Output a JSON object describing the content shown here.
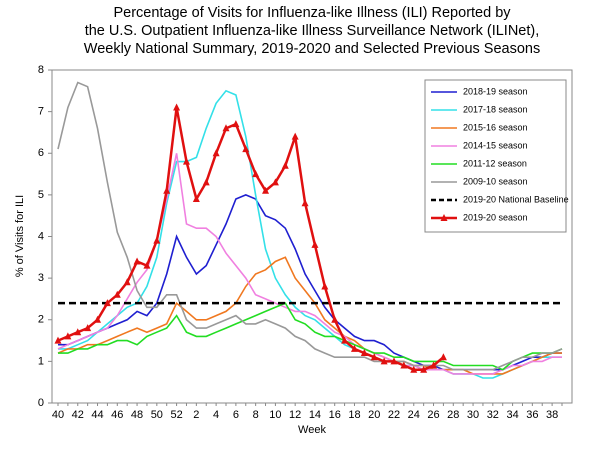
{
  "chart_data": {
    "type": "line",
    "title": [
      "Percentage of Visits for Influenza-like Illness (ILI) Reported by",
      "the U.S. Outpatient Influenza-like Illness Surveillance Network (ILINet),",
      "Weekly National Summary, 2019-2020 and Selected Previous Seasons"
    ],
    "x_label": "Week",
    "y_label": "% of Visits for ILI",
    "categories": [
      "40",
      null,
      "42",
      null,
      "44",
      null,
      "46",
      null,
      "48",
      null,
      "50",
      null,
      "52",
      null,
      "2",
      null,
      "4",
      null,
      "6",
      null,
      "8",
      null,
      "10",
      null,
      "12",
      null,
      "14",
      null,
      "16",
      null,
      "18",
      null,
      "20",
      null,
      "22",
      null,
      "24",
      null,
      "26",
      null,
      "28",
      null,
      "30",
      null,
      "32",
      null,
      "34",
      null,
      "36",
      null,
      "38",
      null
    ],
    "ylim": [
      0,
      8
    ],
    "yticks": [
      0,
      1,
      2,
      3,
      4,
      5,
      6,
      7,
      8
    ],
    "legend": "upper right",
    "series": [
      {
        "name": "2018-19 season",
        "color": "#1f1fd0",
        "values": [
          1.4,
          1.4,
          1.5,
          1.6,
          1.7,
          1.8,
          1.9,
          2.0,
          2.2,
          2.1,
          2.4,
          3.1,
          4.0,
          3.5,
          3.1,
          3.3,
          3.8,
          4.3,
          4.9,
          5.0,
          4.9,
          4.5,
          4.4,
          4.2,
          3.7,
          3.1,
          2.7,
          2.3,
          2.0,
          1.8,
          1.6,
          1.5,
          1.5,
          1.4,
          1.2,
          1.1,
          1.0,
          0.9,
          0.9,
          0.8,
          0.8,
          0.8,
          0.8,
          0.8,
          0.8,
          0.8,
          0.9,
          1.0,
          1.1,
          1.1,
          1.2,
          1.2
        ]
      },
      {
        "name": "2017-18 season",
        "color": "#33e0e8",
        "values": [
          1.3,
          1.3,
          1.4,
          1.5,
          1.7,
          1.9,
          2.1,
          2.3,
          2.4,
          2.8,
          3.5,
          4.8,
          5.8,
          5.8,
          5.9,
          6.6,
          7.2,
          7.5,
          7.4,
          6.4,
          5.0,
          3.7,
          3.0,
          2.6,
          2.3,
          2.1,
          2.0,
          1.8,
          1.6,
          1.4,
          1.3,
          1.2,
          1.1,
          1.0,
          1.0,
          0.9,
          0.9,
          0.8,
          0.8,
          0.8,
          0.7,
          0.7,
          0.7,
          0.6,
          0.6,
          0.7,
          0.8,
          0.9,
          1.0,
          1.1,
          1.1,
          1.1
        ]
      },
      {
        "name": "2015-16 season",
        "color": "#f07820",
        "values": [
          1.2,
          1.3,
          1.3,
          1.4,
          1.4,
          1.5,
          1.6,
          1.7,
          1.8,
          1.7,
          1.8,
          1.9,
          2.4,
          2.2,
          2.0,
          2.0,
          2.1,
          2.2,
          2.4,
          2.8,
          3.1,
          3.2,
          3.4,
          3.5,
          3.0,
          2.7,
          2.4,
          2.0,
          1.8,
          1.6,
          1.5,
          1.3,
          1.2,
          1.1,
          1.0,
          1.0,
          0.9,
          0.9,
          0.8,
          0.8,
          0.8,
          0.8,
          0.7,
          0.7,
          0.7,
          0.7,
          0.8,
          0.9,
          1.0,
          1.1,
          1.2,
          1.2
        ]
      },
      {
        "name": "2014-15 season",
        "color": "#f080e0",
        "values": [
          1.3,
          1.4,
          1.5,
          1.6,
          1.7,
          1.8,
          2.1,
          2.5,
          2.9,
          3.2,
          3.9,
          4.9,
          6.0,
          4.3,
          4.2,
          4.2,
          4.0,
          3.6,
          3.3,
          3.0,
          2.6,
          2.5,
          2.4,
          2.3,
          2.2,
          2.2,
          2.1,
          1.9,
          1.7,
          1.6,
          1.4,
          1.3,
          1.2,
          1.1,
          1.0,
          0.9,
          0.9,
          0.8,
          0.8,
          0.8,
          0.7,
          0.7,
          0.7,
          0.7,
          0.7,
          0.8,
          0.9,
          0.9,
          1.0,
          1.0,
          1.1,
          1.1
        ]
      },
      {
        "name": "2011-12 season",
        "color": "#22dd22",
        "values": [
          1.2,
          1.2,
          1.3,
          1.3,
          1.4,
          1.4,
          1.5,
          1.5,
          1.4,
          1.6,
          1.7,
          1.8,
          2.1,
          1.7,
          1.6,
          1.6,
          1.7,
          1.8,
          1.9,
          2.0,
          2.1,
          2.2,
          2.3,
          2.4,
          2.0,
          1.9,
          1.7,
          1.6,
          1.6,
          1.5,
          1.4,
          1.3,
          1.2,
          1.2,
          1.1,
          1.1,
          1.0,
          1.0,
          1.0,
          1.0,
          0.9,
          0.9,
          0.9,
          0.9,
          0.9,
          0.8,
          1.0,
          1.1,
          1.2,
          1.2,
          1.2,
          1.3
        ]
      },
      {
        "name": "2009-10 season",
        "color": "#999999",
        "values": [
          6.1,
          7.1,
          7.7,
          7.6,
          6.6,
          5.3,
          4.1,
          3.5,
          2.7,
          2.3,
          2.3,
          2.6,
          2.6,
          2.0,
          1.8,
          1.8,
          1.9,
          2.0,
          2.1,
          1.9,
          1.9,
          2.0,
          1.9,
          1.8,
          1.6,
          1.5,
          1.3,
          1.2,
          1.1,
          1.1,
          1.1,
          1.1,
          1.0,
          1.0,
          1.0,
          1.0,
          0.9,
          0.9,
          0.9,
          0.9,
          0.8,
          0.8,
          0.8,
          0.8,
          0.8,
          0.9,
          1.0,
          1.1,
          1.1,
          1.2,
          1.2,
          1.3
        ]
      },
      {
        "name": "2019-20 National Baseline",
        "color": "#000000",
        "dash": true,
        "values": [
          2.4,
          2.4,
          2.4,
          2.4,
          2.4,
          2.4,
          2.4,
          2.4,
          2.4,
          2.4,
          2.4,
          2.4,
          2.4,
          2.4,
          2.4,
          2.4,
          2.4,
          2.4,
          2.4,
          2.4,
          2.4,
          2.4,
          2.4,
          2.4,
          2.4,
          2.4,
          2.4,
          2.4,
          2.4,
          2.4,
          2.4,
          2.4,
          2.4,
          2.4,
          2.4,
          2.4,
          2.4,
          2.4,
          2.4,
          2.4,
          2.4,
          2.4,
          2.4,
          2.4,
          2.4,
          2.4,
          2.4,
          2.4,
          2.4,
          2.4,
          2.4,
          2.4
        ]
      },
      {
        "name": "2019-20 season",
        "color": "#e01010",
        "marker": "triangle",
        "values": [
          1.5,
          1.6,
          1.7,
          1.8,
          2.0,
          2.4,
          2.6,
          2.9,
          3.4,
          3.3,
          3.9,
          5.1,
          7.1,
          5.8,
          4.9,
          5.3,
          6.0,
          6.6,
          6.7,
          6.1,
          5.5,
          5.1,
          5.3,
          5.7,
          6.4,
          4.8,
          3.8,
          2.8,
          2.0,
          1.5,
          1.3,
          1.2,
          1.1,
          1.0,
          1.0,
          0.9,
          0.8,
          0.8,
          0.9,
          1.1,
          null,
          null,
          null,
          null,
          null,
          null,
          null,
          null,
          null,
          null,
          null,
          null
        ]
      }
    ]
  }
}
